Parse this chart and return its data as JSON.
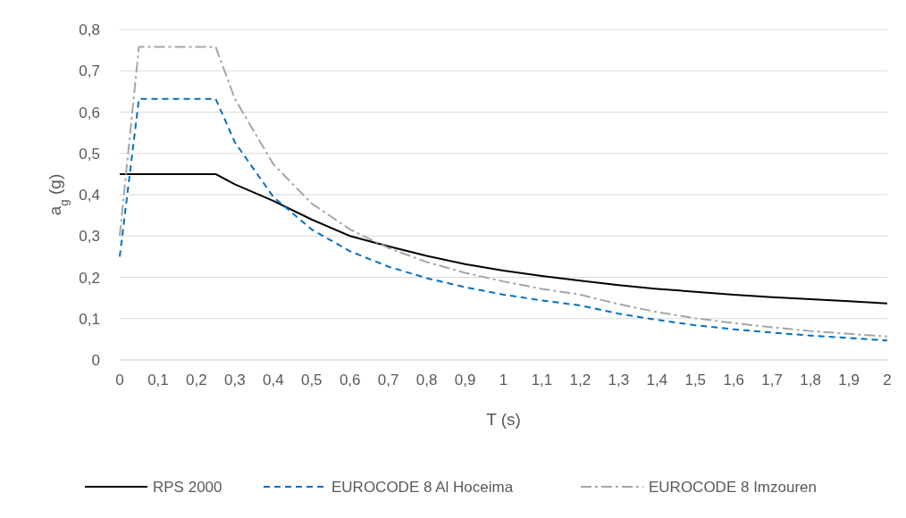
{
  "chart_data": {
    "type": "line",
    "xlabel": "T (s)",
    "ylabel": "a$_{g}$ (g)",
    "xlim": [
      0,
      2
    ],
    "ylim": [
      0,
      0.8
    ],
    "xticks": [
      0,
      {
        "value": 0.1,
        "label": "0,1"
      },
      {
        "value": 0.2,
        "label": "0,2"
      },
      {
        "value": 0.3,
        "label": "0,3"
      },
      {
        "value": 0.4,
        "label": "0,4"
      },
      {
        "value": 0.5,
        "label": "0,5"
      },
      {
        "value": 0.6,
        "label": "0,6"
      },
      {
        "value": 0.7,
        "label": "0,7"
      },
      {
        "value": 0.8,
        "label": "0,8"
      },
      {
        "value": 0.9,
        "label": "0,9"
      },
      1,
      {
        "value": 1.1,
        "label": "1,1"
      },
      {
        "value": 1.2,
        "label": "1,2"
      },
      {
        "value": 1.3,
        "label": "1,3"
      },
      {
        "value": 1.4,
        "label": "1,4"
      },
      {
        "value": 1.5,
        "label": "1,5"
      },
      {
        "value": 1.6,
        "label": "1,6"
      },
      {
        "value": 1.7,
        "label": "1,7"
      },
      {
        "value": 1.8,
        "label": "1,8"
      },
      {
        "value": 1.9,
        "label": "1,9"
      },
      2
    ],
    "yticks": [
      0,
      {
        "value": 0.1,
        "label": "0,1"
      },
      {
        "value": 0.2,
        "label": "0,2"
      },
      {
        "value": 0.3,
        "label": "0,3"
      },
      {
        "value": 0.4,
        "label": "0,4"
      },
      {
        "value": 0.5,
        "label": "0,5"
      },
      {
        "value": 0.6,
        "label": "0,6"
      },
      {
        "value": 0.7,
        "label": "0,7"
      },
      {
        "value": 0.8,
        "label": "0,8"
      }
    ],
    "grid": "y",
    "legend": "bottom",
    "marker": "none",
    "series": [
      {
        "name": "RPS 2000",
        "color": "#000000",
        "line_style": "solid",
        "x": [
          0,
          0.25,
          0.3,
          0.4,
          0.5,
          0.6,
          0.7,
          0.8,
          0.9,
          1,
          1.1,
          1.2,
          1.3,
          1.4,
          1.5,
          1.6,
          1.7,
          1.8,
          1.9,
          2
        ],
        "values": [
          0.45,
          0.45,
          0.425,
          0.385,
          0.34,
          0.3,
          0.275,
          0.252,
          0.232,
          0.216,
          0.203,
          0.192,
          0.181,
          0.172,
          0.165,
          0.158,
          0.152,
          0.147,
          0.142,
          0.137
        ]
      },
      {
        "name": "EUROCODE 8 Al Hoceima",
        "color": "#0070c0",
        "line_style": "dashed",
        "x": [
          0,
          0.05,
          0.25,
          0.3,
          0.4,
          0.5,
          0.6,
          0.7,
          0.8,
          0.9,
          1,
          1.1,
          1.2,
          1.3,
          1.4,
          1.5,
          1.6,
          1.7,
          1.8,
          1.9,
          2
        ],
        "values": [
          0.25,
          0.632,
          0.632,
          0.527,
          0.395,
          0.316,
          0.263,
          0.226,
          0.198,
          0.176,
          0.158,
          0.144,
          0.132,
          0.112,
          0.097,
          0.084,
          0.074,
          0.066,
          0.059,
          0.053,
          0.047
        ]
      },
      {
        "name": "EUROCODE 8 Imzouren",
        "color": "#a5a5a5",
        "line_style": "dashdot",
        "x": [
          0,
          0.05,
          0.25,
          0.3,
          0.4,
          0.5,
          0.6,
          0.7,
          0.8,
          0.9,
          1,
          1.1,
          1.2,
          1.3,
          1.4,
          1.5,
          1.6,
          1.7,
          1.8,
          1.9,
          2
        ],
        "values": [
          0.3,
          0.758,
          0.758,
          0.632,
          0.474,
          0.379,
          0.316,
          0.271,
          0.237,
          0.211,
          0.19,
          0.172,
          0.158,
          0.135,
          0.116,
          0.101,
          0.089,
          0.079,
          0.07,
          0.063,
          0.057
        ]
      }
    ]
  }
}
